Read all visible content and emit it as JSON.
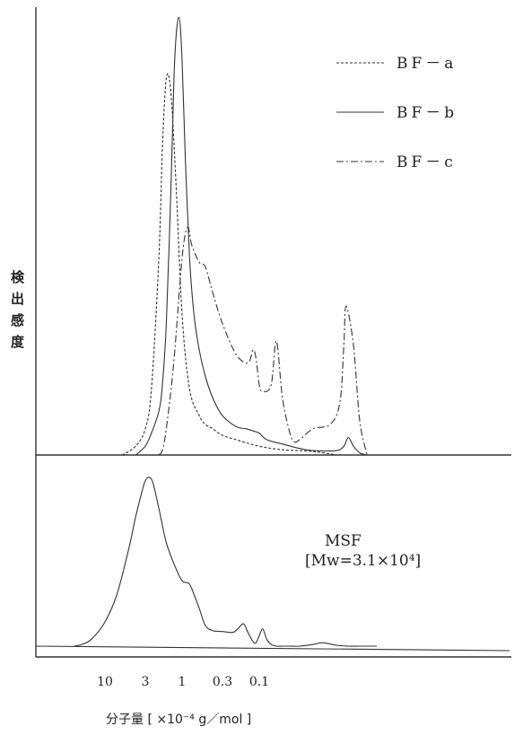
{
  "chart_data": [
    {
      "type": "line",
      "panel": "upper",
      "title": "",
      "xlabel": "分子量 [ ×10⁻⁴ g／mol ]",
      "ylabel": "検出感度",
      "x_scale": "log",
      "x_reversed": true,
      "xlim": [
        25,
        0.003
      ],
      "ylim": [
        0,
        1.0
      ],
      "y_ticks_shown": false,
      "grid": false,
      "legend_position": "top-right",
      "series": [
        {
          "name": "BF－a",
          "style": "dashed",
          "x": [
            6,
            4,
            3,
            2.5,
            2,
            1.8,
            1.6,
            1.4,
            1.2,
            1.0,
            0.8,
            0.6,
            0.5,
            0.4,
            0.3,
            0.2,
            0.1,
            0.05,
            0.02,
            0.01
          ],
          "y": [
            0.0,
            0.02,
            0.06,
            0.15,
            0.45,
            0.7,
            0.86,
            0.83,
            0.62,
            0.32,
            0.15,
            0.09,
            0.07,
            0.06,
            0.045,
            0.035,
            0.02,
            0.012,
            0.008,
            0.0
          ]
        },
        {
          "name": "BF－b",
          "style": "solid",
          "x": [
            4,
            3,
            2.5,
            2,
            1.8,
            1.6,
            1.4,
            1.25,
            1.1,
            1.0,
            0.9,
            0.8,
            0.7,
            0.6,
            0.5,
            0.4,
            0.3,
            0.2,
            0.15,
            0.12,
            0.1,
            0.08,
            0.05,
            0.03,
            0.02,
            0.01,
            0.008,
            0.007,
            0.006,
            0.005,
            0.004
          ],
          "y": [
            0.0,
            0.02,
            0.05,
            0.1,
            0.16,
            0.3,
            0.6,
            0.9,
            1.0,
            0.9,
            0.66,
            0.45,
            0.32,
            0.24,
            0.18,
            0.13,
            0.09,
            0.065,
            0.06,
            0.055,
            0.05,
            0.035,
            0.025,
            0.015,
            0.01,
            0.01,
            0.02,
            0.04,
            0.02,
            0.005,
            0.0
          ]
        },
        {
          "name": "BF－c",
          "style": "dash-dot",
          "x": [
            2,
            1.7,
            1.3,
            1.0,
            0.85,
            0.75,
            0.6,
            0.5,
            0.4,
            0.3,
            0.2,
            0.14,
            0.12,
            0.11,
            0.1,
            0.09,
            0.07,
            0.06,
            0.05,
            0.04,
            0.035,
            0.03,
            0.02,
            0.012,
            0.009,
            0.008,
            0.0075,
            0.006,
            0.005,
            0.004
          ],
          "y": [
            0.0,
            0.03,
            0.2,
            0.45,
            0.52,
            0.48,
            0.44,
            0.43,
            0.37,
            0.3,
            0.23,
            0.21,
            0.24,
            0.22,
            0.16,
            0.145,
            0.16,
            0.26,
            0.13,
            0.05,
            0.03,
            0.035,
            0.06,
            0.07,
            0.12,
            0.25,
            0.34,
            0.25,
            0.08,
            0.0
          ]
        }
      ]
    },
    {
      "type": "line",
      "panel": "lower",
      "title": "",
      "x_scale": "log",
      "x_reversed": true,
      "xlim": [
        25,
        0.003
      ],
      "ylim": [
        0,
        1.0
      ],
      "xticks": [
        {
          "value": 10,
          "label": "10"
        },
        {
          "value": 3,
          "label": "3"
        },
        {
          "value": 1,
          "label": "1"
        },
        {
          "value": 0.3,
          "label": "0.3"
        },
        {
          "value": 0.1,
          "label": "0.1"
        }
      ],
      "annotation": {
        "line1": "MSF",
        "line2": "[Mw=3.1×10⁴]"
      },
      "series": [
        {
          "name": "MSF",
          "style": "solid",
          "x": [
            25,
            20,
            15,
            10,
            7,
            5,
            4,
            3.3,
            3,
            2.7,
            2.4,
            2,
            1.6,
            1.2,
            1.0,
            0.9,
            0.8,
            0.7,
            0.6,
            0.5,
            0.4,
            0.3,
            0.22,
            0.19,
            0.16,
            0.14,
            0.12,
            0.11,
            0.1,
            0.09,
            0.08,
            0.07,
            0.06,
            0.05,
            0.04,
            0.03,
            0.02,
            0.015,
            0.01,
            0.007,
            0.005,
            0.003
          ],
          "y": [
            0.0,
            0.01,
            0.04,
            0.14,
            0.3,
            0.55,
            0.75,
            0.9,
            0.96,
            0.98,
            0.95,
            0.8,
            0.6,
            0.45,
            0.38,
            0.37,
            0.36,
            0.3,
            0.22,
            0.12,
            0.09,
            0.085,
            0.08,
            0.1,
            0.13,
            0.08,
            0.025,
            0.02,
            0.06,
            0.1,
            0.04,
            0.01,
            0.0,
            0.0,
            0.0,
            0.0,
            0.01,
            0.02,
            0.005,
            0.0,
            0.0,
            0.0
          ]
        }
      ]
    }
  ],
  "legend": [
    {
      "label": "BF－a",
      "style": "dashed"
    },
    {
      "label": "BF－b",
      "style": "solid"
    },
    {
      "label": "BF－c",
      "style": "dash-dot"
    }
  ],
  "ylabel_chars": [
    "検",
    "出",
    "感",
    "度"
  ],
  "xlabel_text": "分子量  [ ×10⁻⁴ g／mol ]"
}
